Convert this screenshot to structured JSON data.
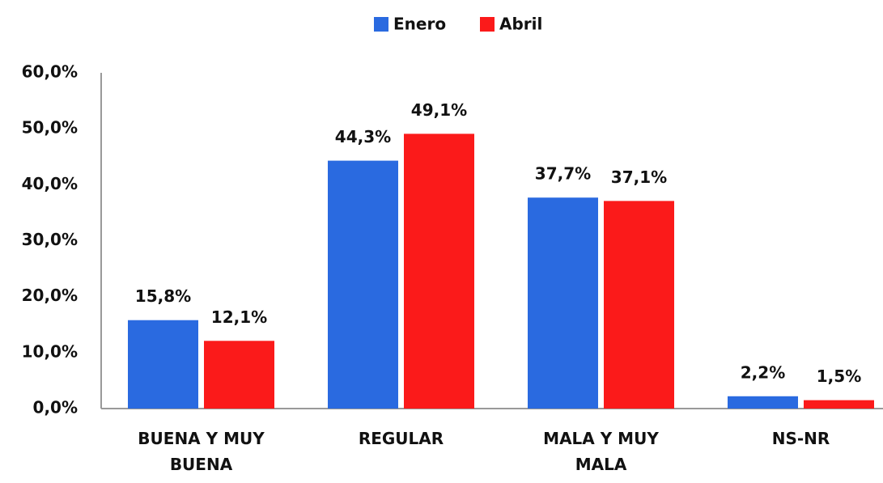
{
  "chart_data": {
    "type": "bar",
    "categories": [
      "BUENA Y MUY BUENA",
      "REGULAR",
      "MALA Y MUY MALA",
      "NS-NR"
    ],
    "series": [
      {
        "name": "Enero",
        "color": "#2a6ae0",
        "values": [
          15.8,
          44.3,
          37.7,
          2.2
        ],
        "value_labels": [
          "15,8%",
          "44,3%",
          "37,7%",
          "2,2%"
        ]
      },
      {
        "name": "Abril",
        "color": "#fb1a1a",
        "values": [
          12.1,
          49.1,
          37.1,
          1.5
        ],
        "value_labels": [
          "12,1%",
          "49,1%",
          "37,1%",
          "1,5%"
        ]
      }
    ],
    "ylim": [
      0,
      60
    ],
    "yticks": [
      {
        "value": 0,
        "label": "0,0%"
      },
      {
        "value": 10,
        "label": "10,0%"
      },
      {
        "value": 20,
        "label": "20,0%"
      },
      {
        "value": 30,
        "label": "30,0%"
      },
      {
        "value": 40,
        "label": "40,0%"
      },
      {
        "value": 50,
        "label": "50,0%"
      },
      {
        "value": 60,
        "label": "60,0%"
      }
    ],
    "grid": false,
    "legend": "top"
  }
}
